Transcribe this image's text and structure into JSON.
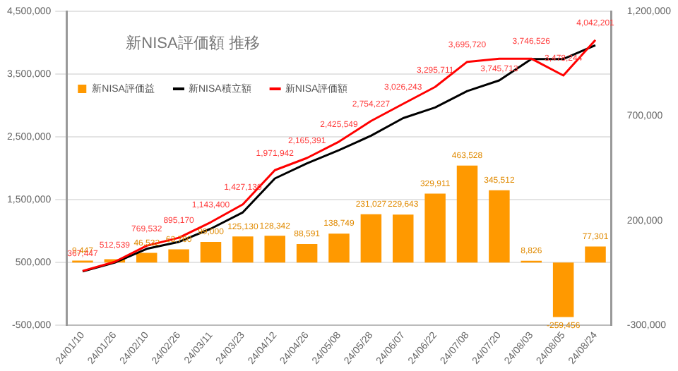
{
  "chart_data": {
    "type": "bar",
    "title": "新NISA評価額 推移",
    "categories": [
      "24/01/10",
      "24/01/26",
      "24/02/10",
      "24/02/26",
      "24/03/11",
      "24/03/23",
      "24/04/12",
      "24/04/26",
      "24/05/08",
      "24/05/28",
      "24/06/07",
      "24/06/22",
      "24/07/08",
      "24/07/20",
      "24/08/03",
      "24/08/05",
      "24/08/24"
    ],
    "series": [
      {
        "name": "新NISA評価益",
        "axis": "y2",
        "color": "#ff9900",
        "values": [
          9447,
          16000,
          46532,
          63760,
          99000,
          125130,
          128342,
          88591,
          138749,
          231027,
          229643,
          329911,
          463528,
          345512,
          8826,
          -259456,
          77301
        ],
        "value_labels": [
          "9,447",
          null,
          "46,532",
          "63,760",
          "99,000",
          "125,130",
          "128,342",
          "88,591",
          "138,749",
          "231,027",
          "229,643",
          "329,911",
          "463,528",
          "345,512",
          "8,826",
          "-259,456",
          "77,301"
        ]
      },
      {
        "name": "新NISA積立額",
        "type": "line",
        "color": "#000000",
        "values": [
          360000,
          500000,
          720000,
          830000,
          1040000,
          1300000,
          1840000,
          2080000,
          2290000,
          2520000,
          2800000,
          2970000,
          3230000,
          3400000,
          3740000,
          3740000,
          3960000
        ]
      },
      {
        "name": "新NISA評価額",
        "type": "line",
        "color": "#ff0000",
        "values": [
          367447,
          512539,
          769532,
          895170,
          1143400,
          1427130,
          1971942,
          2165391,
          2425549,
          2754227,
          3026243,
          3295711,
          3695720,
          3745713,
          3746526,
          3478244,
          4042201
        ],
        "value_labels": [
          "367,447",
          "512,539",
          "769,532",
          "895,170",
          "1,143,400",
          "1,427,130",
          "1,971,942",
          "2,165,391",
          "2,425,549",
          "2,754,227",
          "3,026,243",
          "3,295,711",
          "3,695,720",
          "3,745,713",
          "3,746,526",
          "3,478,244",
          "4,042,201"
        ]
      }
    ],
    "ylim": [
      -500000,
      4500000
    ],
    "yticks": [
      {
        "value": -500000,
        "label": "-500,000"
      },
      {
        "value": 500000,
        "label": "500,000"
      },
      {
        "value": 1500000,
        "label": "1,500,000"
      },
      {
        "value": 2500000,
        "label": "2,500,000"
      },
      {
        "value": 3500000,
        "label": "3,500,000"
      },
      {
        "value": 4500000,
        "label": "4,500,000"
      }
    ],
    "y2lim": [
      -300000,
      1200000
    ],
    "y2ticks": [
      {
        "value": -300000,
        "label": "-300,000"
      },
      {
        "value": 200000,
        "label": "200,000"
      },
      {
        "value": 700000,
        "label": "700,000"
      },
      {
        "value": 1200000,
        "label": "1,200,000"
      }
    ],
    "grid": "y",
    "legend": "top left",
    "marker": "none"
  }
}
